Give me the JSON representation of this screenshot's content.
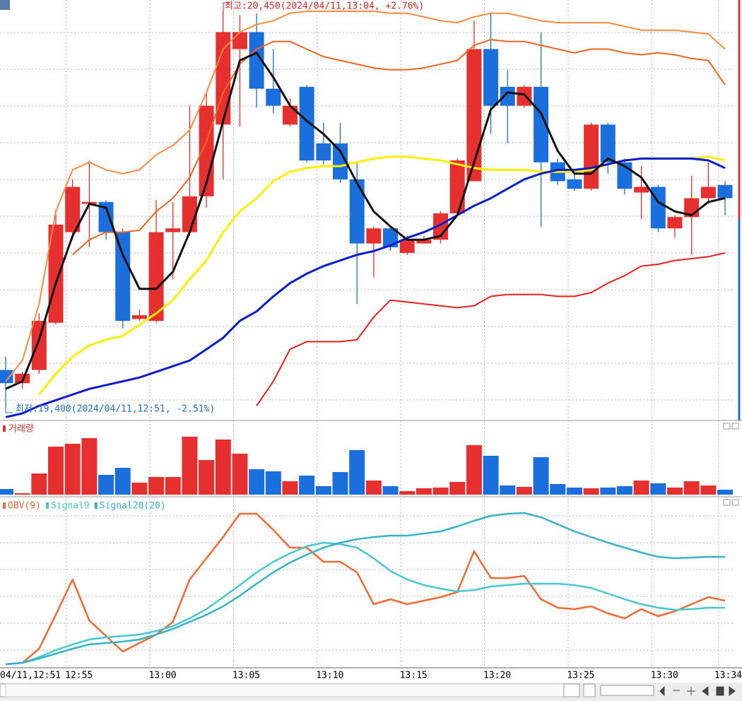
{
  "chart_data": [
    {
      "type": "candlestick",
      "high_label": "최고:20,450(2024/04/11,13:04, +2.76%)",
      "low_label": "최저:19,400(2024/04/11,12:51, -2.51%)",
      "categories": [
        "04/11,12:51",
        null,
        null,
        null,
        "12:55",
        null,
        null,
        null,
        null,
        "13:00",
        null,
        null,
        null,
        null,
        "13:05",
        null,
        null,
        null,
        null,
        "13:10",
        null,
        null,
        null,
        null,
        "13:15",
        null,
        null,
        null,
        null,
        "13:20",
        null,
        null,
        null,
        null,
        "13:25",
        null,
        null,
        null,
        null,
        "13:30",
        null,
        null,
        null,
        "13:34"
      ],
      "up_color": "#e5302f",
      "down_color": "#1b6fdc",
      "ylim": [
        19370,
        20480
      ],
      "grid": true,
      "open": [
        19500,
        19465,
        19500,
        19625,
        19865,
        19940,
        19945,
        19865,
        19635,
        19630,
        19865,
        19865,
        19960,
        20150,
        20350,
        20395,
        20245,
        20150,
        20250,
        20100,
        20100,
        20005,
        19835,
        19875,
        19810,
        19835,
        19845,
        19915,
        20000,
        20350,
        20250,
        20200,
        20250,
        20050,
        20005,
        19980,
        20150,
        20050,
        19970,
        19985,
        19875,
        19905,
        19955,
        19990
      ],
      "high": [
        19535,
        19495,
        19650,
        19925,
        20005,
        20055,
        19950,
        19875,
        19660,
        19950,
        19945,
        20200,
        20235,
        20450,
        20440,
        20445,
        20350,
        20220,
        20255,
        20155,
        20155,
        20050,
        19880,
        19880,
        19855,
        19855,
        19920,
        20060,
        20425,
        20445,
        20295,
        20255,
        20395,
        20060,
        20030,
        20155,
        20155,
        20060,
        20040,
        19990,
        19910,
        20015,
        20050,
        20000
      ],
      "low": [
        19400,
        19450,
        19490,
        19620,
        19845,
        19825,
        19845,
        19610,
        19630,
        19625,
        19740,
        19855,
        19930,
        20005,
        20145,
        20195,
        20180,
        20145,
        20050,
        20045,
        19995,
        19675,
        19745,
        19815,
        19805,
        19835,
        19835,
        19910,
        20000,
        20125,
        20100,
        20195,
        19880,
        19990,
        19975,
        19975,
        20020,
        19965,
        19900,
        19865,
        19850,
        19805,
        19940,
        19910
      ],
      "close": [
        19465,
        19490,
        19630,
        19885,
        19985,
        19945,
        19865,
        19630,
        19645,
        19865,
        19875,
        19960,
        20200,
        20395,
        20395,
        20245,
        20200,
        20200,
        20055,
        20055,
        20005,
        19835,
        19875,
        19825,
        19845,
        19845,
        19915,
        20055,
        20350,
        20200,
        20200,
        20250,
        20050,
        20000,
        19980,
        20150,
        20050,
        19980,
        19985,
        19875,
        19905,
        19955,
        19985,
        19955
      ],
      "lines": [
        {
          "color": "#ff8a3d",
          "values": [
            19470,
            19525,
            19675,
            19920,
            20030,
            20050,
            20030,
            20020,
            20030,
            20070,
            20095,
            20135,
            20235,
            20350,
            20395,
            20415,
            20425,
            20445,
            20450,
            20450,
            20450,
            20450,
            20450,
            20445,
            20445,
            20435,
            20425,
            20420,
            20435,
            20445,
            20445,
            20435,
            20425,
            20420,
            20420,
            20420,
            20420,
            20410,
            20400,
            20400,
            20400,
            20395,
            20390,
            20350
          ]
        },
        {
          "color": "#f0641e",
          "values": [
            null,
            null,
            null,
            null,
            19805,
            19845,
            19865,
            19865,
            19870,
            19920,
            19955,
            20010,
            20105,
            20235,
            20310,
            20350,
            20370,
            20370,
            20350,
            20330,
            20320,
            20310,
            20300,
            20295,
            20295,
            20300,
            20310,
            20320,
            20360,
            20375,
            20370,
            20370,
            20360,
            20350,
            20340,
            20350,
            20350,
            20340,
            20335,
            20340,
            20335,
            20325,
            20320,
            20255
          ]
        },
        {
          "color": "#e8201e",
          "values": [
            null,
            null,
            null,
            null,
            null,
            null,
            null,
            null,
            null,
            null,
            null,
            null,
            null,
            null,
            null,
            19405,
            19470,
            19555,
            19575,
            19575,
            19575,
            19580,
            19640,
            19685,
            19680,
            19675,
            19670,
            19665,
            19670,
            19695,
            19700,
            19700,
            19700,
            19695,
            19695,
            19705,
            19730,
            19750,
            19775,
            19780,
            19790,
            19795,
            19800,
            19810
          ]
        },
        {
          "color": "#ffee00",
          "values": [
            null,
            null,
            19435,
            19490,
            19535,
            19565,
            19580,
            19590,
            19620,
            19650,
            19685,
            19740,
            19790,
            19865,
            19920,
            19955,
            20000,
            20025,
            20035,
            20040,
            20040,
            20050,
            20060,
            20065,
            20065,
            20060,
            20055,
            20045,
            20035,
            20030,
            20030,
            20030,
            20025,
            20025,
            20025,
            20030,
            20045,
            20055,
            20060,
            20060,
            20060,
            20060,
            20065,
            20055
          ]
        },
        {
          "color": "#0a1ecc",
          "values": [
            19375,
            19385,
            19405,
            19420,
            19435,
            19450,
            19460,
            19470,
            19480,
            19495,
            19510,
            19525,
            19555,
            19585,
            19630,
            19655,
            19695,
            19730,
            19755,
            19775,
            19790,
            19805,
            19815,
            19830,
            19850,
            19865,
            19885,
            19910,
            19935,
            19955,
            19980,
            20005,
            20020,
            20030,
            20030,
            20035,
            20045,
            20055,
            20060,
            20060,
            20060,
            20060,
            20055,
            20035
          ]
        },
        {
          "color": "#111111",
          "values": [
            19450,
            19470,
            19580,
            19730,
            19855,
            19940,
            19930,
            19805,
            19715,
            19715,
            19760,
            19865,
            19995,
            20160,
            20320,
            20340,
            20275,
            20200,
            20160,
            20125,
            20080,
            19995,
            19920,
            19880,
            19845,
            19845,
            19855,
            19910,
            20050,
            20190,
            20235,
            20230,
            20180,
            20080,
            20020,
            20020,
            20060,
            20040,
            20010,
            19945,
            19920,
            19910,
            19945,
            19955
          ]
        }
      ]
    },
    {
      "type": "bar",
      "title": "거래량",
      "color": "#e5302f",
      "ylim": [
        0,
        100
      ],
      "values": [
        8,
        2,
        30,
        68,
        72,
        80,
        28,
        38,
        17,
        25,
        25,
        82,
        49,
        78,
        58,
        36,
        33,
        19,
        27,
        12,
        32,
        63,
        20,
        12,
        5,
        9,
        10,
        18,
        70,
        55,
        13,
        11,
        53,
        15,
        10,
        9,
        10,
        12,
        20,
        16,
        10,
        19,
        13,
        7
      ]
    },
    {
      "type": "line",
      "ylim": [
        0,
        240
      ],
      "grid": true,
      "series": [
        {
          "name": "OBV(9)",
          "color": "#f26a32",
          "values": [
            5,
            7,
            27,
            75,
            125,
            67,
            45,
            23,
            35,
            47,
            65,
            125,
            155,
            185,
            218,
            218,
            195,
            170,
            170,
            150,
            150,
            135,
            90,
            97,
            90,
            95,
            100,
            107,
            165,
            127,
            127,
            130,
            97,
            85,
            83,
            87,
            77,
            70,
            83,
            73,
            80,
            90,
            100,
            95
          ]
        },
        {
          "name": "Signal9",
          "color": "#47c8cf",
          "values": [
            5,
            7,
            15,
            25,
            33,
            40,
            43,
            45,
            47,
            52,
            59,
            70,
            83,
            100,
            117,
            135,
            150,
            162,
            172,
            177,
            175,
            170,
            155,
            137,
            125,
            117,
            112,
            108,
            110,
            115,
            117,
            119,
            119,
            119,
            117,
            113,
            105,
            97,
            90,
            85,
            82,
            83,
            85,
            85
          ]
        },
        {
          "name": "Signal20(20)",
          "color": "#35b4c8",
          "values": [
            5,
            7,
            13,
            20,
            27,
            33,
            35,
            37,
            40,
            47,
            55,
            65,
            75,
            87,
            102,
            119,
            135,
            149,
            160,
            170,
            177,
            182,
            185,
            187,
            187,
            190,
            193,
            200,
            208,
            215,
            218,
            219,
            213,
            203,
            193,
            185,
            177,
            170,
            163,
            157,
            155,
            156,
            157,
            157
          ]
        }
      ]
    }
  ]
}
